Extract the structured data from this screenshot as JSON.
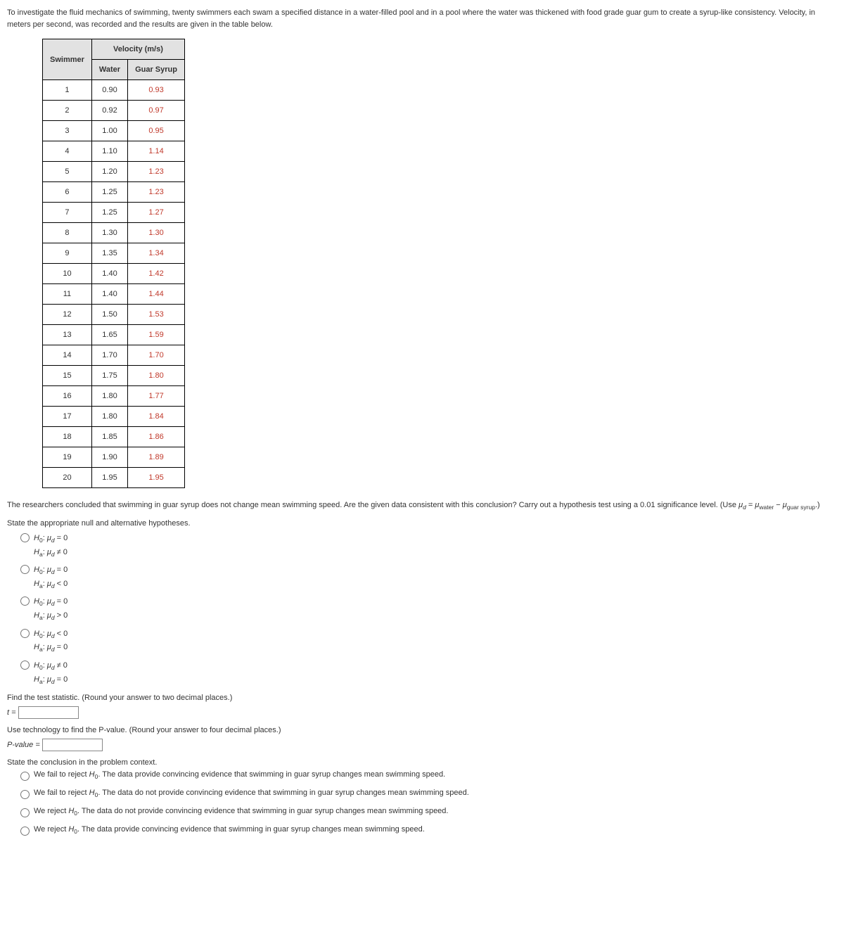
{
  "intro": "To investigate the fluid mechanics of swimming, twenty swimmers each swam a specified distance in a water-filled pool and in a pool where the water was thickened with food grade guar gum to create a syrup-like consistency. Velocity, in meters per second, was recorded and the results are given in the table below.",
  "table": {
    "header_swimmer": "Swimmer",
    "header_velocity": "Velocity (m/s)",
    "header_water": "Water",
    "header_syrup": "Guar Syrup",
    "rows": [
      {
        "n": "1",
        "w": "0.90",
        "s": "0.93"
      },
      {
        "n": "2",
        "w": "0.92",
        "s": "0.97"
      },
      {
        "n": "3",
        "w": "1.00",
        "s": "0.95"
      },
      {
        "n": "4",
        "w": "1.10",
        "s": "1.14"
      },
      {
        "n": "5",
        "w": "1.20",
        "s": "1.23"
      },
      {
        "n": "6",
        "w": "1.25",
        "s": "1.23"
      },
      {
        "n": "7",
        "w": "1.25",
        "s": "1.27"
      },
      {
        "n": "8",
        "w": "1.30",
        "s": "1.30"
      },
      {
        "n": "9",
        "w": "1.35",
        "s": "1.34"
      },
      {
        "n": "10",
        "w": "1.40",
        "s": "1.42"
      },
      {
        "n": "11",
        "w": "1.40",
        "s": "1.44"
      },
      {
        "n": "12",
        "w": "1.50",
        "s": "1.53"
      },
      {
        "n": "13",
        "w": "1.65",
        "s": "1.59"
      },
      {
        "n": "14",
        "w": "1.70",
        "s": "1.70"
      },
      {
        "n": "15",
        "w": "1.75",
        "s": "1.80"
      },
      {
        "n": "16",
        "w": "1.80",
        "s": "1.77"
      },
      {
        "n": "17",
        "w": "1.80",
        "s": "1.84"
      },
      {
        "n": "18",
        "w": "1.85",
        "s": "1.86"
      },
      {
        "n": "19",
        "w": "1.90",
        "s": "1.89"
      },
      {
        "n": "20",
        "w": "1.95",
        "s": "1.95"
      }
    ]
  },
  "question": {
    "p1": "The researchers concluded that swimming in guar syrup does not change mean swimming speed. Are the given data consistent with this conclusion? Carry out a hypothesis test using a 0.01 significance level. (Use ",
    "mu_d_eq": " = ",
    "mu_water": "water",
    "minus": " − ",
    "mu_syrup": "guar syrup",
    "p1_end": ".)"
  },
  "state_hyp": "State the appropriate null and alternative hypotheses.",
  "hyp_options": [
    {
      "h0": "= 0",
      "ha": "≠ 0"
    },
    {
      "h0": "= 0",
      "ha": "< 0"
    },
    {
      "h0": "= 0",
      "ha": "> 0"
    },
    {
      "h0": "< 0",
      "ha": "= 0"
    },
    {
      "h0": "≠ 0",
      "ha": "= 0"
    }
  ],
  "labels": {
    "H0": "H",
    "sub0": "0",
    "Ha": "H",
    "suba": "a",
    "mu": "μ",
    "subd": "d",
    "colon": ": "
  },
  "find_test": "Find the test statistic. (Round your answer to two decimal places.)",
  "t_eq": "t =",
  "find_p": "Use technology to find the P-value. (Round your answer to four decimal places.)",
  "p_eq": "P-value =",
  "state_conclusion": "State the conclusion in the problem context.",
  "conclusions": [
    "We fail to reject H₀. The data provide convincing evidence that swimming in guar syrup changes mean swimming speed.",
    "We fail to reject H₀. The data do not provide convincing evidence that swimming in guar syrup changes mean swimming speed.",
    "We reject H₀. The data do not provide convincing evidence that swimming in guar syrup changes mean swimming speed.",
    "We reject H₀. The data provide convincing evidence that swimming in guar syrup changes mean swimming speed."
  ]
}
